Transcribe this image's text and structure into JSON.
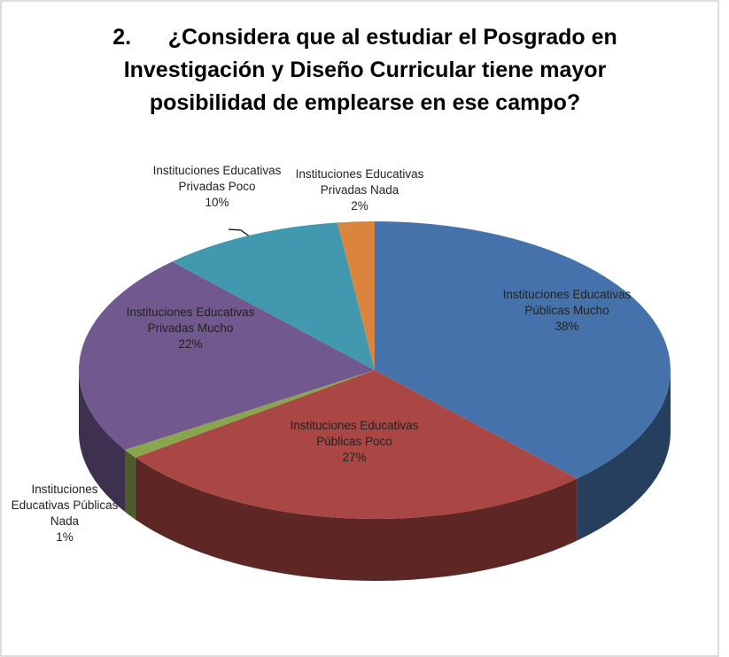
{
  "chart_data": {
    "type": "pie",
    "title": "2.      ¿Considera que al estudiar el Posgrado en Investigación y Diseño Curricular tiene mayor posibilidad de emplearse en ese campo?",
    "categories": [
      "Instituciones Educativas Públicas Mucho",
      "Instituciones Educativas Públicas Poco",
      "Instituciones Educativas Públicas Nada",
      "Instituciones Educativas Privadas Mucho",
      "Instituciones Educativas Privadas Poco",
      "Instituciones Educativas Privadas Nada"
    ],
    "values": [
      38,
      27,
      1,
      22,
      10,
      2
    ],
    "value_labels": [
      "38%",
      "27%",
      "1%",
      "22%",
      "10%",
      "2%"
    ],
    "colors": [
      "#4672ac",
      "#aa4643",
      "#89a54e",
      "#71588f",
      "#4198af",
      "#db843d"
    ]
  }
}
